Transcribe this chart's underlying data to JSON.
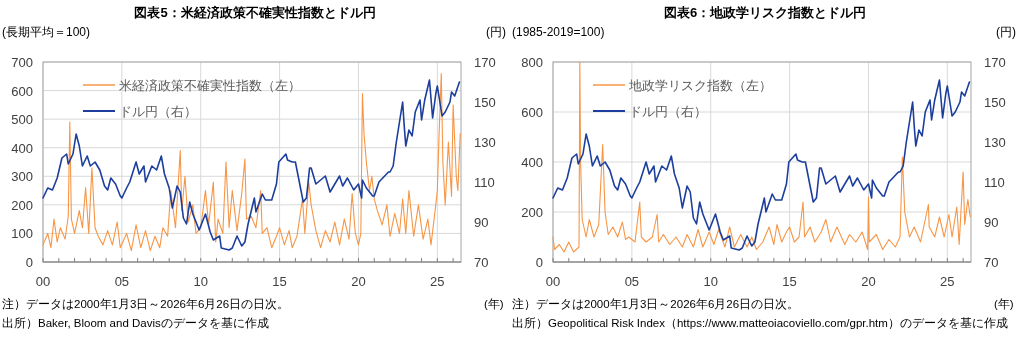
{
  "chart_data": [
    {
      "type": "line",
      "title": "図表5：米経済政策不確実性指数とドル円",
      "ylabel": "(長期平均＝100)",
      "y2label": "(円)",
      "xlabel": "(年)",
      "annotations": [
        "注）データは2000年1月3日～2026年6月26日の日次。",
        "出所）Baker, Bloom and Davisのデータを基に作成"
      ],
      "xlim": [
        2000,
        2026.5
      ],
      "xticks": [
        {
          "value": 2000,
          "label": "00"
        },
        {
          "value": 2001,
          "label": null
        },
        {
          "value": 2002,
          "label": null
        },
        {
          "value": 2003,
          "label": null
        },
        {
          "value": 2004,
          "label": null
        },
        {
          "value": 2005,
          "label": "05"
        },
        {
          "value": 2006,
          "label": null
        },
        {
          "value": 2007,
          "label": null
        },
        {
          "value": 2008,
          "label": null
        },
        {
          "value": 2009,
          "label": null
        },
        {
          "value": 2010,
          "label": "10"
        },
        {
          "value": 2011,
          "label": null
        },
        {
          "value": 2012,
          "label": null
        },
        {
          "value": 2013,
          "label": null
        },
        {
          "value": 2014,
          "label": null
        },
        {
          "value": 2015,
          "label": "15"
        },
        {
          "value": 2016,
          "label": null
        },
        {
          "value": 2017,
          "label": null
        },
        {
          "value": 2018,
          "label": null
        },
        {
          "value": 2019,
          "label": null
        },
        {
          "value": 2020,
          "label": "20"
        },
        {
          "value": 2021,
          "label": null
        },
        {
          "value": 2022,
          "label": null
        },
        {
          "value": 2023,
          "label": null
        },
        {
          "value": 2024,
          "label": null
        },
        {
          "value": 2025,
          "label": "25"
        },
        {
          "value": 2026,
          "label": null
        }
      ],
      "ylim": [
        0,
        700
      ],
      "yticks": [
        0,
        100,
        200,
        300,
        400,
        500,
        600,
        700
      ],
      "y2lim": [
        70,
        170
      ],
      "y2ticks": [
        70,
        90,
        110,
        130,
        150,
        170
      ],
      "grid": true,
      "legend": "top left",
      "series": [
        {
          "name": "米経済政策不確実性指数（左）",
          "color": "#f79646",
          "x": [
            2000.0,
            2000.3,
            2000.5,
            2000.7,
            2000.9,
            2001.1,
            2001.4,
            2001.6,
            2001.7,
            2001.8,
            2002.0,
            2002.3,
            2002.5,
            2002.7,
            2002.9,
            2003.1,
            2003.3,
            2003.5,
            2003.8,
            2004.1,
            2004.4,
            2004.7,
            2004.9,
            2005.3,
            2005.6,
            2005.9,
            2006.2,
            2006.5,
            2006.8,
            2007.1,
            2007.4,
            2007.6,
            2007.9,
            2008.1,
            2008.4,
            2008.7,
            2008.8,
            2009.0,
            2009.2,
            2009.5,
            2009.7,
            2010.0,
            2010.3,
            2010.5,
            2010.8,
            2010.95,
            2011.1,
            2011.4,
            2011.6,
            2011.8,
            2012.0,
            2012.3,
            2012.6,
            2012.8,
            2012.9,
            2013.2,
            2013.5,
            2013.8,
            2013.9,
            2014.2,
            2014.5,
            2014.8,
            2015.0,
            2015.3,
            2015.6,
            2015.8,
            2016.1,
            2016.45,
            2016.6,
            2016.85,
            2017.0,
            2017.3,
            2017.6,
            2017.9,
            2018.2,
            2018.5,
            2018.8,
            2019.1,
            2019.4,
            2019.6,
            2019.8,
            2020.0,
            2020.15,
            2020.25,
            2020.35,
            2020.5,
            2020.7,
            2020.85,
            2021.0,
            2021.2,
            2021.5,
            2021.8,
            2022.0,
            2022.3,
            2022.6,
            2022.8,
            2023.0,
            2023.2,
            2023.5,
            2023.8,
            2024.1,
            2024.4,
            2024.6,
            2024.9,
            2025.0,
            2025.1,
            2025.25,
            2025.35,
            2025.5,
            2025.7,
            2025.9,
            2026.0,
            2026.2,
            2026.3,
            2026.45
          ],
          "values": [
            60,
            100,
            50,
            150,
            70,
            120,
            80,
            160,
            490,
            150,
            100,
            180,
            120,
            260,
            100,
            330,
            120,
            90,
            60,
            110,
            60,
            140,
            50,
            100,
            40,
            130,
            50,
            110,
            40,
            90,
            50,
            120,
            90,
            250,
            120,
            390,
            180,
            300,
            140,
            200,
            100,
            120,
            250,
            130,
            280,
            70,
            150,
            100,
            350,
            120,
            250,
            110,
            240,
            360,
            150,
            160,
            120,
            250,
            100,
            120,
            50,
            90,
            120,
            60,
            110,
            50,
            90,
            220,
            100,
            280,
            200,
            110,
            50,
            110,
            70,
            140,
            60,
            150,
            80,
            240,
            100,
            60,
            100,
            590,
            450,
            350,
            250,
            300,
            220,
            180,
            130,
            200,
            90,
            170,
            100,
            220,
            100,
            250,
            90,
            200,
            80,
            150,
            60,
            200,
            250,
            430,
            660,
            350,
            200,
            420,
            230,
            550,
            300,
            250,
            450
          ]
        },
        {
          "name": "ドル円（右）",
          "color": "#1c3e9c",
          "axis": "y2",
          "x": [
            2000.0,
            2000.3,
            2000.6,
            2000.9,
            2001.2,
            2001.5,
            2001.6,
            2001.9,
            2002.1,
            2002.3,
            2002.5,
            2002.8,
            2003.0,
            2003.3,
            2003.6,
            2003.9,
            2004.1,
            2004.3,
            2004.6,
            2004.9,
            2005.0,
            2005.3,
            2005.5,
            2005.9,
            2006.1,
            2006.4,
            2006.5,
            2006.9,
            2007.2,
            2007.5,
            2007.7,
            2008.0,
            2008.2,
            2008.5,
            2008.7,
            2008.9,
            2009.1,
            2009.3,
            2009.5,
            2009.9,
            2010.3,
            2010.6,
            2010.8,
            2011.2,
            2011.3,
            2011.8,
            2012.0,
            2012.3,
            2012.6,
            2012.8,
            2013.0,
            2013.4,
            2013.5,
            2013.9,
            2014.1,
            2014.5,
            2014.8,
            2014.95,
            2015.4,
            2015.5,
            2015.8,
            2016.0,
            2016.5,
            2016.7,
            2016.9,
            2017.0,
            2017.3,
            2017.6,
            2017.9,
            2018.2,
            2018.8,
            2019.0,
            2019.3,
            2019.7,
            2020.0,
            2020.2,
            2020.25,
            2020.5,
            2020.9,
            2021.0,
            2021.3,
            2021.9,
            2022.0,
            2022.2,
            2022.4,
            2022.8,
            2022.9,
            2023.0,
            2023.2,
            2023.4,
            2023.6,
            2023.9,
            2024.0,
            2024.2,
            2024.5,
            2024.7,
            2024.9,
            2025.0,
            2025.3,
            2025.5,
            2025.8,
            2025.9,
            2026.1,
            2026.4
          ],
          "values": [
            102,
            107,
            106,
            112,
            122,
            124,
            119,
            124,
            134,
            128,
            118,
            123,
            118,
            120,
            116,
            108,
            106,
            112,
            109,
            103,
            102,
            107,
            110,
            120,
            114,
            118,
            110,
            118,
            116,
            123,
            114,
            107,
            97,
            108,
            105,
            92,
            89,
            100,
            94,
            86,
            94,
            85,
            81,
            83,
            77,
            76,
            77,
            83,
            78,
            80,
            89,
            102,
            95,
            104,
            101,
            101,
            109,
            120,
            124,
            121,
            120,
            120,
            100,
            102,
            117,
            117,
            109,
            111,
            113,
            105,
            113,
            108,
            112,
            106,
            109,
            102,
            111,
            107,
            103,
            103,
            110,
            115,
            115,
            118,
            130,
            150,
            138,
            128,
            136,
            133,
            145,
            151,
            141,
            151,
            161,
            142,
            154,
            158,
            143,
            145,
            150,
            155,
            153,
            160
          ]
        }
      ]
    },
    {
      "type": "line",
      "title": "図表6：地政学リスク指数とドル円",
      "ylabel": "(1985-2019=100)",
      "y2label": "(円)",
      "xlabel": "(年)",
      "annotations": [
        "注）データは2000年1月3日～2026年6月26日の日次。",
        "出所）Geopolitical Risk Index（https://www.matteoiacoviello.com/gpr.htm）のデータを基に作成"
      ],
      "xlim": [
        2000,
        2026.5
      ],
      "xticks": [
        {
          "value": 2000,
          "label": "00"
        },
        {
          "value": 2001,
          "label": null
        },
        {
          "value": 2002,
          "label": null
        },
        {
          "value": 2003,
          "label": null
        },
        {
          "value": 2004,
          "label": null
        },
        {
          "value": 2005,
          "label": "05"
        },
        {
          "value": 2006,
          "label": null
        },
        {
          "value": 2007,
          "label": null
        },
        {
          "value": 2008,
          "label": null
        },
        {
          "value": 2009,
          "label": null
        },
        {
          "value": 2010,
          "label": "10"
        },
        {
          "value": 2011,
          "label": null
        },
        {
          "value": 2012,
          "label": null
        },
        {
          "value": 2013,
          "label": null
        },
        {
          "value": 2014,
          "label": null
        },
        {
          "value": 2015,
          "label": "15"
        },
        {
          "value": 2016,
          "label": null
        },
        {
          "value": 2017,
          "label": null
        },
        {
          "value": 2018,
          "label": null
        },
        {
          "value": 2019,
          "label": null
        },
        {
          "value": 2020,
          "label": "20"
        },
        {
          "value": 2021,
          "label": null
        },
        {
          "value": 2022,
          "label": null
        },
        {
          "value": 2023,
          "label": null
        },
        {
          "value": 2024,
          "label": null
        },
        {
          "value": 2025,
          "label": "25"
        },
        {
          "value": 2026,
          "label": null
        }
      ],
      "ylim": [
        0,
        800
      ],
      "yticks": [
        0,
        200,
        400,
        600,
        800
      ],
      "y2lim": [
        70,
        170
      ],
      "y2ticks": [
        70,
        90,
        110,
        130,
        150,
        170
      ],
      "grid": true,
      "legend": "top left",
      "series": [
        {
          "name": "地政学リスク指数（左）",
          "color": "#f79646",
          "x": [
            2000.0,
            2000.1,
            2000.4,
            2000.7,
            2001.0,
            2001.3,
            2001.65,
            2001.7,
            2001.75,
            2001.85,
            2002.1,
            2002.3,
            2002.6,
            2002.9,
            2003.15,
            2003.3,
            2003.5,
            2003.8,
            2004.1,
            2004.4,
            2004.6,
            2004.8,
            2005.2,
            2005.5,
            2005.6,
            2005.9,
            2006.3,
            2006.6,
            2006.7,
            2007.0,
            2007.4,
            2007.8,
            2008.2,
            2008.5,
            2008.9,
            2009.2,
            2009.5,
            2009.9,
            2010.2,
            2010.5,
            2010.9,
            2011.2,
            2011.5,
            2011.9,
            2012.3,
            2012.6,
            2012.9,
            2013.3,
            2013.7,
            2014.0,
            2014.2,
            2014.5,
            2014.8,
            2015.0,
            2015.3,
            2015.6,
            2015.85,
            2015.95,
            2016.3,
            2016.6,
            2017.0,
            2017.3,
            2017.6,
            2018.0,
            2018.5,
            2018.8,
            2019.2,
            2019.6,
            2019.95,
            2020.0,
            2020.05,
            2020.5,
            2020.9,
            2021.3,
            2021.7,
            2022.0,
            2022.15,
            2022.3,
            2022.6,
            2022.9,
            2023.3,
            2023.8,
            2023.85,
            2024.2,
            2024.5,
            2024.8,
            2025.1,
            2025.3,
            2025.6,
            2025.75,
            2026.0,
            2026.1,
            2026.3,
            2026.45
          ],
          "values": [
            100,
            50,
            70,
            40,
            80,
            40,
            60,
            800,
            400,
            170,
            100,
            170,
            100,
            150,
            470,
            200,
            110,
            140,
            100,
            160,
            90,
            100,
            80,
            240,
            100,
            80,
            100,
            190,
            80,
            110,
            70,
            100,
            60,
            110,
            60,
            130,
            60,
            120,
            70,
            130,
            60,
            140,
            60,
            110,
            60,
            100,
            50,
            80,
            140,
            70,
            150,
            80,
            120,
            140,
            80,
            100,
            240,
            100,
            140,
            80,
            120,
            170,
            80,
            140,
            70,
            110,
            80,
            120,
            50,
            260,
            80,
            110,
            50,
            90,
            60,
            100,
            420,
            200,
            100,
            140,
            80,
            230,
            140,
            100,
            180,
            100,
            190,
            100,
            220,
            70,
            360,
            150,
            250,
            180
          ]
        },
        {
          "name": "ドル円（右）",
          "color": "#1c3e9c",
          "axis": "y2",
          "x": [
            2000.0,
            2000.3,
            2000.6,
            2000.9,
            2001.2,
            2001.5,
            2001.6,
            2001.9,
            2002.1,
            2002.3,
            2002.5,
            2002.8,
            2003.0,
            2003.3,
            2003.6,
            2003.9,
            2004.1,
            2004.3,
            2004.6,
            2004.9,
            2005.0,
            2005.3,
            2005.5,
            2005.9,
            2006.1,
            2006.4,
            2006.5,
            2006.9,
            2007.2,
            2007.5,
            2007.7,
            2008.0,
            2008.2,
            2008.5,
            2008.7,
            2008.9,
            2009.1,
            2009.3,
            2009.5,
            2009.9,
            2010.3,
            2010.6,
            2010.8,
            2011.2,
            2011.3,
            2011.8,
            2012.0,
            2012.3,
            2012.6,
            2012.8,
            2013.0,
            2013.4,
            2013.5,
            2013.9,
            2014.1,
            2014.5,
            2014.8,
            2014.95,
            2015.4,
            2015.5,
            2015.8,
            2016.0,
            2016.5,
            2016.7,
            2016.9,
            2017.0,
            2017.3,
            2017.6,
            2017.9,
            2018.2,
            2018.8,
            2019.0,
            2019.3,
            2019.7,
            2020.0,
            2020.2,
            2020.25,
            2020.5,
            2020.9,
            2021.0,
            2021.3,
            2021.9,
            2022.0,
            2022.2,
            2022.4,
            2022.8,
            2022.9,
            2023.0,
            2023.2,
            2023.4,
            2023.6,
            2023.9,
            2024.0,
            2024.2,
            2024.5,
            2024.7,
            2024.9,
            2025.0,
            2025.3,
            2025.5,
            2025.8,
            2025.9,
            2026.1,
            2026.4
          ],
          "values": [
            102,
            107,
            106,
            112,
            122,
            124,
            119,
            124,
            134,
            128,
            118,
            123,
            118,
            120,
            116,
            108,
            106,
            112,
            109,
            103,
            102,
            107,
            110,
            120,
            114,
            118,
            110,
            118,
            116,
            123,
            114,
            107,
            97,
            108,
            105,
            92,
            89,
            100,
            94,
            86,
            94,
            85,
            81,
            83,
            77,
            76,
            77,
            83,
            78,
            80,
            89,
            102,
            95,
            104,
            101,
            101,
            109,
            120,
            124,
            121,
            120,
            120,
            100,
            102,
            117,
            117,
            109,
            111,
            113,
            105,
            113,
            108,
            112,
            106,
            109,
            102,
            111,
            107,
            103,
            103,
            110,
            115,
            115,
            118,
            130,
            150,
            138,
            128,
            136,
            133,
            145,
            151,
            141,
            151,
            161,
            142,
            154,
            158,
            143,
            145,
            150,
            155,
            153,
            160
          ]
        }
      ]
    }
  ]
}
